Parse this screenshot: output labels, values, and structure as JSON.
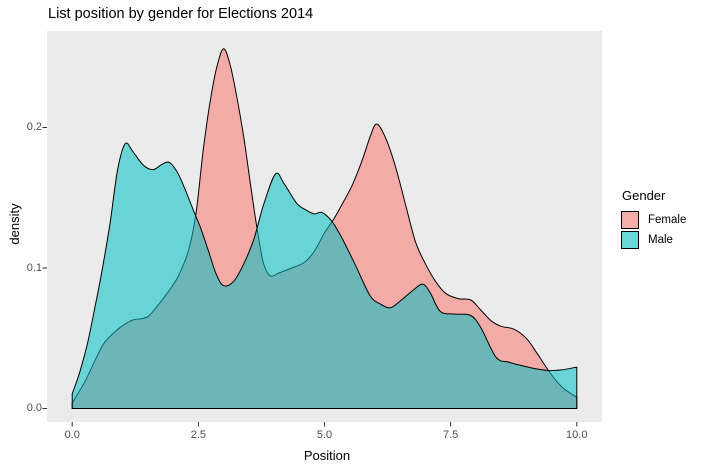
{
  "title": "List position by gender for Elections 2014",
  "axes": {
    "x": {
      "label": "Position",
      "ticks": [
        "0.0",
        "2.5",
        "5.0",
        "7.5",
        "10.0"
      ],
      "tick_values": [
        0,
        2.5,
        5,
        7.5,
        10
      ]
    },
    "y": {
      "label": "density",
      "ticks": [
        "0.0",
        "0.1",
        "0.2"
      ],
      "tick_values": [
        0,
        0.1,
        0.2
      ]
    }
  },
  "legend": {
    "title": "Gender",
    "items": [
      {
        "label": "Female",
        "color": "#F8766D"
      },
      {
        "label": "Male",
        "color": "#00BFC4"
      }
    ]
  },
  "colors": {
    "panel_bg": "#EBEBEB",
    "outline": "#000000",
    "tick_mark": "#333333",
    "tick_text": "#4D4D4D",
    "female_fill": "rgba(248,118,109,0.55)",
    "male_fill": "rgba(0,191,196,0.55)"
  },
  "chart_data": {
    "type": "area",
    "subtype": "overlapping-density",
    "title": "List position by gender for Elections 2014",
    "xlabel": "Position",
    "ylabel": "density",
    "xlim": [
      -0.5,
      10.5
    ],
    "ylim": [
      -0.013,
      0.269
    ],
    "grid": "none",
    "legend_position": "right",
    "series": [
      {
        "name": "Female",
        "points": [
          [
            0,
            0.004
          ],
          [
            0.25,
            0.019
          ],
          [
            0.45,
            0.034
          ],
          [
            0.62,
            0.046
          ],
          [
            0.8,
            0.053
          ],
          [
            1.0,
            0.059
          ],
          [
            1.2,
            0.063
          ],
          [
            1.38,
            0.064
          ],
          [
            1.52,
            0.066
          ],
          [
            1.7,
            0.0735
          ],
          [
            1.9,
            0.083
          ],
          [
            2.1,
            0.094
          ],
          [
            2.3,
            0.112
          ],
          [
            2.45,
            0.138
          ],
          [
            2.6,
            0.185
          ],
          [
            2.75,
            0.222
          ],
          [
            2.88,
            0.245
          ],
          [
            3.0,
            0.256
          ],
          [
            3.12,
            0.246
          ],
          [
            3.25,
            0.224
          ],
          [
            3.4,
            0.193
          ],
          [
            3.52,
            0.163
          ],
          [
            3.65,
            0.131
          ],
          [
            3.78,
            0.105
          ],
          [
            3.92,
            0.0945
          ],
          [
            4.1,
            0.0965
          ],
          [
            4.35,
            0.1
          ],
          [
            4.6,
            0.104
          ],
          [
            4.8,
            0.112
          ],
          [
            5.0,
            0.125
          ],
          [
            5.17,
            0.134
          ],
          [
            5.35,
            0.1455
          ],
          [
            5.55,
            0.159
          ],
          [
            5.75,
            0.177
          ],
          [
            5.9,
            0.193
          ],
          [
            6.03,
            0.2025
          ],
          [
            6.2,
            0.1935
          ],
          [
            6.4,
            0.173
          ],
          [
            6.6,
            0.146
          ],
          [
            6.8,
            0.119
          ],
          [
            7.0,
            0.103
          ],
          [
            7.2,
            0.0905
          ],
          [
            7.4,
            0.082
          ],
          [
            7.65,
            0.0782
          ],
          [
            7.9,
            0.0772
          ],
          [
            8.1,
            0.07
          ],
          [
            8.3,
            0.0625
          ],
          [
            8.5,
            0.0585
          ],
          [
            8.75,
            0.0565
          ],
          [
            9.0,
            0.05
          ],
          [
            9.2,
            0.04
          ],
          [
            9.45,
            0.0265
          ],
          [
            9.7,
            0.0155
          ],
          [
            10,
            0.008
          ]
        ]
      },
      {
        "name": "Male",
        "points": [
          [
            0,
            0.0105
          ],
          [
            0.15,
            0.026
          ],
          [
            0.3,
            0.046
          ],
          [
            0.45,
            0.072
          ],
          [
            0.6,
            0.1
          ],
          [
            0.75,
            0.132
          ],
          [
            0.9,
            0.17
          ],
          [
            1.05,
            0.1885
          ],
          [
            1.2,
            0.183
          ],
          [
            1.4,
            0.1735
          ],
          [
            1.6,
            0.17
          ],
          [
            1.78,
            0.1738
          ],
          [
            1.93,
            0.175
          ],
          [
            2.1,
            0.167
          ],
          [
            2.27,
            0.153
          ],
          [
            2.42,
            0.1395
          ],
          [
            2.55,
            0.128
          ],
          [
            2.7,
            0.112
          ],
          [
            2.85,
            0.096
          ],
          [
            3.0,
            0.0875
          ],
          [
            3.2,
            0.0905
          ],
          [
            3.4,
            0.103
          ],
          [
            3.6,
            0.1205
          ],
          [
            3.8,
            0.146
          ],
          [
            4.03,
            0.167
          ],
          [
            4.2,
            0.16
          ],
          [
            4.45,
            0.146
          ],
          [
            4.65,
            0.141
          ],
          [
            4.8,
            0.1385
          ],
          [
            4.95,
            0.1395
          ],
          [
            5.15,
            0.133
          ],
          [
            5.35,
            0.121
          ],
          [
            5.6,
            0.103
          ],
          [
            5.9,
            0.0805
          ],
          [
            6.1,
            0.0745
          ],
          [
            6.3,
            0.0717
          ],
          [
            6.5,
            0.0765
          ],
          [
            6.75,
            0.084
          ],
          [
            6.95,
            0.0885
          ],
          [
            7.1,
            0.082
          ],
          [
            7.3,
            0.069
          ],
          [
            7.6,
            0.0672
          ],
          [
            7.9,
            0.0662
          ],
          [
            8.1,
            0.0575
          ],
          [
            8.4,
            0.0365
          ],
          [
            8.65,
            0.033
          ],
          [
            8.9,
            0.0306
          ],
          [
            9.2,
            0.0282
          ],
          [
            9.45,
            0.027
          ],
          [
            9.7,
            0.0275
          ],
          [
            10,
            0.0295
          ]
        ]
      }
    ]
  }
}
